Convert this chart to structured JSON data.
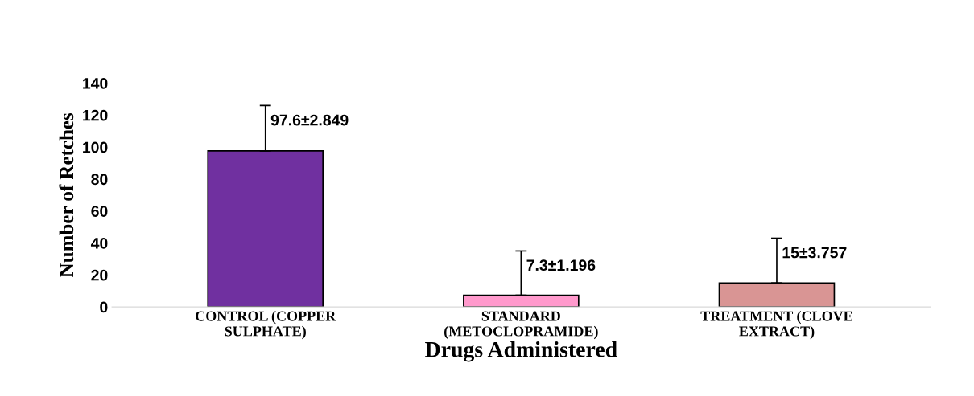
{
  "chart_data": {
    "type": "bar",
    "xlabel": "Drugs Administered",
    "ylabel": "Number of Retches",
    "categories": [
      "CONTROL (COPPER\nSULPHATE)",
      "STANDARD\n(METOCLOPRAMIDE)",
      "TREATMENT (CLOVE\nEXTRACT)"
    ],
    "values": [
      97.6,
      7.3,
      15
    ],
    "colors": [
      "#7030a0",
      "#ff99cc",
      "#d99594"
    ],
    "errors": [
      [
        97.6,
        126
      ],
      [
        7.3,
        35
      ],
      [
        15,
        43
      ]
    ],
    "value_labels": [
      "97.6±2.849",
      "7.3±1.196",
      "15±3.757"
    ],
    "ylim": [
      0,
      140
    ],
    "yticks": [
      0,
      20,
      40,
      60,
      80,
      100,
      120,
      140
    ],
    "grid": false,
    "legend": false
  }
}
